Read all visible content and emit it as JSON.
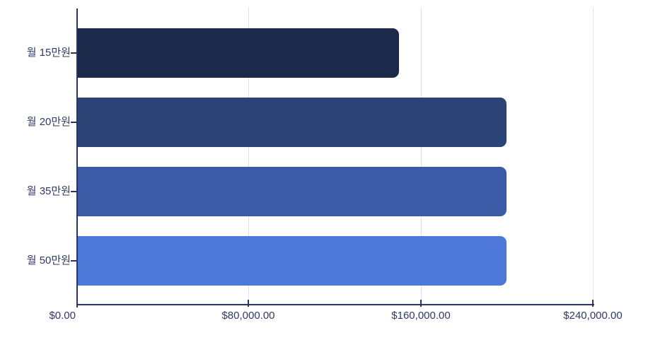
{
  "chart_data": {
    "type": "bar",
    "orientation": "horizontal",
    "title": "",
    "xlabel": "",
    "ylabel": "",
    "categories": [
      "월 15만원",
      "월 20만원",
      "월 35만원",
      "월 50만원"
    ],
    "values": [
      150000,
      200000,
      200000,
      200000
    ],
    "xlim": [
      0,
      240000
    ],
    "x_ticks": [
      0,
      80000,
      160000,
      240000
    ],
    "x_tick_labels": [
      "$0.00",
      "$80,000.00",
      "$160,000.00",
      "$240,000.00"
    ],
    "grid": "vertical-only",
    "legend": false,
    "colors": {
      "bars": [
        "#1b2a4a",
        "#2c4376",
        "#3c5ba6",
        "#4e78d8"
      ],
      "axis": "#2b3560",
      "grid": "#e0e2e8",
      "text": "#2f3a66",
      "background": "#ffffff"
    }
  }
}
